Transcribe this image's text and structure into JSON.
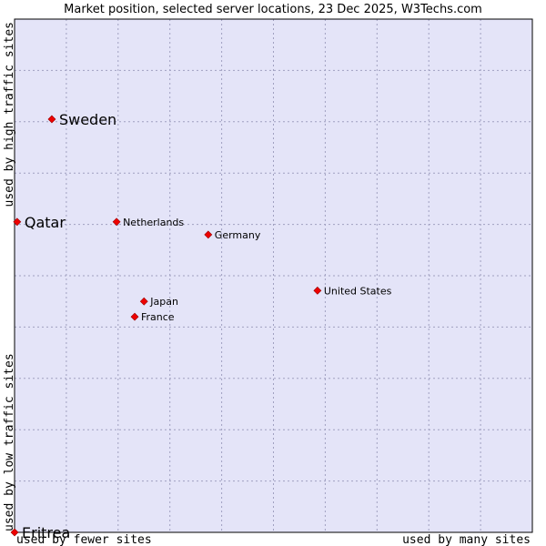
{
  "chart_data": {
    "type": "scatter",
    "title": "Market position, selected server locations, 23 Dec 2025, W3Techs.com",
    "xlabel_left": "used by fewer sites",
    "xlabel_right": "used by many sites",
    "ylabel_top": "used by high traffic sites",
    "ylabel_bottom": "used by low traffic sites",
    "xlim": [
      0,
      10
    ],
    "ylim": [
      0,
      10
    ],
    "grid": true,
    "colors": {
      "plot_background": "#e4e4f8",
      "grid": "#a0a0c0",
      "border": "#000000",
      "marker": "#ee0000"
    },
    "points": [
      {
        "label": "Sweden",
        "x": 0.72,
        "y": 8.05,
        "size": "large"
      },
      {
        "label": "Qatar",
        "x": 0.05,
        "y": 6.05,
        "size": "large"
      },
      {
        "label": "Netherlands",
        "x": 1.97,
        "y": 6.05,
        "size": "small"
      },
      {
        "label": "Germany",
        "x": 3.74,
        "y": 5.8,
        "size": "small"
      },
      {
        "label": "United States",
        "x": 5.85,
        "y": 4.71,
        "size": "small"
      },
      {
        "label": "Japan",
        "x": 2.5,
        "y": 4.5,
        "size": "small"
      },
      {
        "label": "France",
        "x": 2.32,
        "y": 4.2,
        "size": "small"
      },
      {
        "label": "Eritrea",
        "x": 0.0,
        "y": 0.0,
        "size": "large"
      }
    ]
  }
}
